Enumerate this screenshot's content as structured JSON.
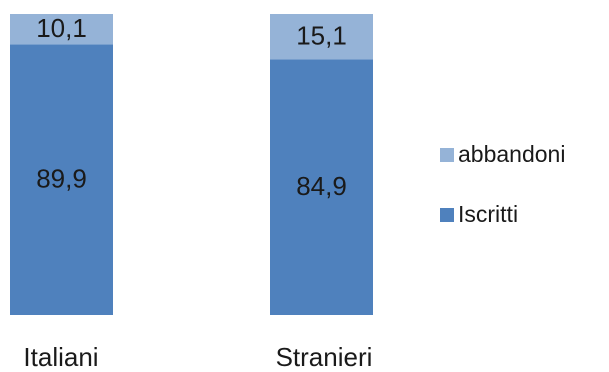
{
  "chart_data": {
    "type": "bar",
    "stacked": true,
    "categories": [
      "Italiani",
      "Stranieri"
    ],
    "series": [
      {
        "name": "Iscritti",
        "values": [
          89.9,
          84.9
        ],
        "labels": [
          "89,9",
          "84,9"
        ],
        "color": "#4f81bd"
      },
      {
        "name": "abbandoni",
        "values": [
          10.1,
          15.1
        ],
        "labels": [
          "10,1",
          "15,1"
        ],
        "color": "#95b3d7"
      }
    ],
    "ylim": [
      0,
      100
    ],
    "grid": false,
    "legend": {
      "placement": "right",
      "order": [
        "abbandoni",
        "Iscritti"
      ]
    }
  }
}
